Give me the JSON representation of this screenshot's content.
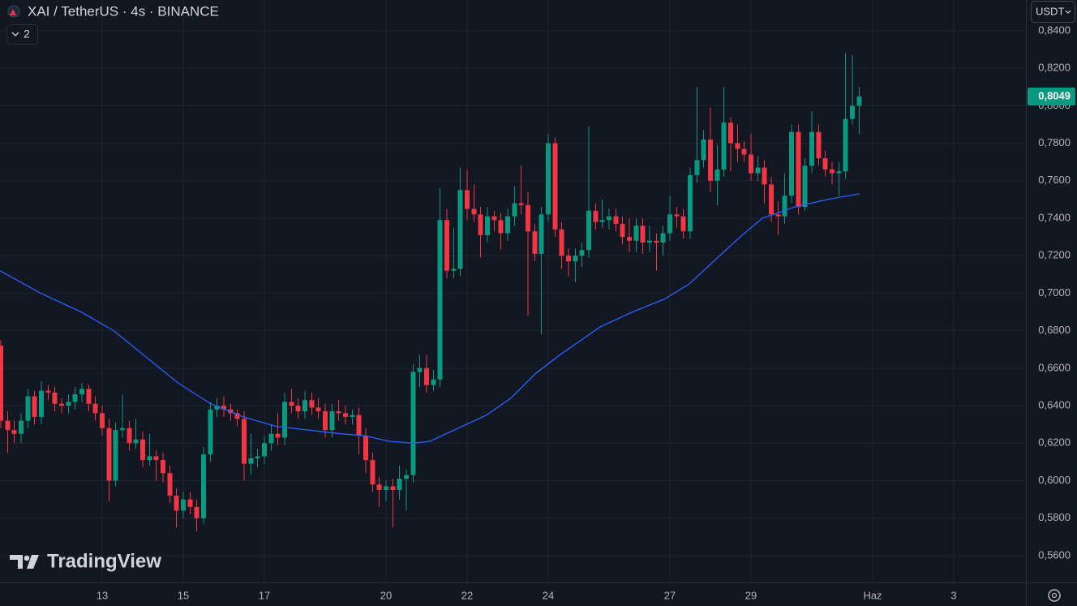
{
  "chart_data": {
    "type": "candlestick",
    "title": "XAI / TetherUS · 4s · BINANCE",
    "indicator_badge": "2",
    "currency": "USDT",
    "watermark": "TradingView",
    "last_price_label": "0,8049",
    "up_color": "#089981",
    "down_color": "#f23645",
    "grid": true,
    "xlim": [
      10.48,
      35.78
    ],
    "ylim": [
      0.5457,
      0.8564
    ],
    "xticks": [
      13,
      15,
      17,
      20,
      22,
      24,
      27,
      29,
      {
        "value": 32,
        "label": "Haz"
      },
      {
        "value": 34,
        "label": "3"
      }
    ],
    "yticks": [
      {
        "value": 0.56,
        "label": "0,5600"
      },
      {
        "value": 0.58,
        "label": "0,5800"
      },
      {
        "value": 0.6,
        "label": "0,6000"
      },
      {
        "value": 0.62,
        "label": "0,6200"
      },
      {
        "value": 0.64,
        "label": "0,6400"
      },
      {
        "value": 0.66,
        "label": "0,6600"
      },
      {
        "value": 0.68,
        "label": "0,6800"
      },
      {
        "value": 0.7,
        "label": "0,7000"
      },
      {
        "value": 0.72,
        "label": "0,7200"
      },
      {
        "value": 0.74,
        "label": "0,7400"
      },
      {
        "value": 0.76,
        "label": "0,7600"
      },
      {
        "value": 0.78,
        "label": "0,7800"
      },
      {
        "value": 0.8,
        "label": "0,8000"
      },
      {
        "value": 0.82,
        "label": "0,8200"
      },
      {
        "value": 0.84,
        "label": "0,8400"
      }
    ],
    "x": [
      10.5,
      10.67,
      10.83,
      11,
      11.17,
      11.33,
      11.5,
      11.67,
      11.83,
      12,
      12.17,
      12.33,
      12.5,
      12.67,
      12.83,
      13,
      13.17,
      13.33,
      13.5,
      13.67,
      13.83,
      14,
      14.17,
      14.33,
      14.5,
      14.67,
      14.83,
      15,
      15.17,
      15.33,
      15.5,
      15.67,
      15.83,
      16,
      16.17,
      16.33,
      16.5,
      16.67,
      16.83,
      17,
      17.17,
      17.33,
      17.5,
      17.67,
      17.83,
      18,
      18.17,
      18.33,
      18.5,
      18.67,
      18.83,
      19,
      19.17,
      19.33,
      19.5,
      19.67,
      19.83,
      20,
      20.17,
      20.33,
      20.5,
      20.67,
      20.83,
      21,
      21.17,
      21.33,
      21.5,
      21.67,
      21.83,
      22,
      22.17,
      22.33,
      22.5,
      22.67,
      22.83,
      23,
      23.17,
      23.33,
      23.5,
      23.67,
      23.83,
      24,
      24.17,
      24.33,
      24.5,
      24.67,
      24.83,
      25,
      25.17,
      25.33,
      25.5,
      25.67,
      25.83,
      26,
      26.17,
      26.33,
      26.5,
      26.67,
      26.83,
      27,
      27.17,
      27.33,
      27.5,
      27.67,
      27.83,
      28,
      28.17,
      28.33,
      28.5,
      28.67,
      28.83,
      29,
      29.17,
      29.33,
      29.5,
      29.67,
      29.83,
      30,
      30.17,
      30.33,
      30.5,
      30.67,
      30.83,
      31,
      31.17,
      31.33,
      31.5,
      31.67
    ],
    "candles": {
      "open": [
        0.672,
        0.632,
        0.627,
        0.625,
        0.632,
        0.645,
        0.634,
        0.648,
        0.647,
        0.641,
        0.64,
        0.642,
        0.646,
        0.649,
        0.641,
        0.636,
        0.628,
        0.6,
        0.627,
        0.628,
        0.62,
        0.622,
        0.611,
        0.613,
        0.611,
        0.604,
        0.592,
        0.584,
        0.59,
        0.586,
        0.58,
        0.614,
        0.638,
        0.64,
        0.638,
        0.636,
        0.633,
        0.609,
        0.612,
        0.613,
        0.62,
        0.625,
        0.623,
        0.642,
        0.64,
        0.637,
        0.643,
        0.639,
        0.637,
        0.627,
        0.637,
        0.636,
        0.634,
        0.635,
        0.624,
        0.611,
        0.598,
        0.595,
        0.597,
        0.595,
        0.601,
        0.603,
        0.658,
        0.66,
        0.651,
        0.654,
        0.739,
        0.712,
        0.713,
        0.755,
        0.745,
        0.742,
        0.731,
        0.741,
        0.739,
        0.732,
        0.741,
        0.748,
        0.747,
        0.733,
        0.721,
        0.742,
        0.78,
        0.734,
        0.72,
        0.717,
        0.72,
        0.723,
        0.744,
        0.738,
        0.739,
        0.741,
        0.737,
        0.73,
        0.728,
        0.736,
        0.727,
        0.728,
        0.727,
        0.732,
        0.742,
        0.741,
        0.733,
        0.763,
        0.771,
        0.782,
        0.76,
        0.766,
        0.791,
        0.78,
        0.777,
        0.774,
        0.764,
        0.767,
        0.758,
        0.742,
        0.741,
        0.752,
        0.786,
        0.746,
        0.768,
        0.786,
        0.772,
        0.766,
        0.764,
        0.765,
        0.793,
        0.8
      ],
      "high": [
        0.675,
        0.637,
        0.632,
        0.636,
        0.649,
        0.648,
        0.653,
        0.651,
        0.65,
        0.644,
        0.646,
        0.65,
        0.652,
        0.651,
        0.645,
        0.64,
        0.633,
        0.631,
        0.646,
        0.632,
        0.633,
        0.626,
        0.625,
        0.616,
        0.615,
        0.608,
        0.596,
        0.594,
        0.594,
        0.59,
        0.618,
        0.642,
        0.644,
        0.645,
        0.641,
        0.638,
        0.637,
        0.625,
        0.617,
        0.624,
        0.63,
        0.636,
        0.647,
        0.649,
        0.644,
        0.648,
        0.647,
        0.644,
        0.641,
        0.641,
        0.643,
        0.64,
        0.638,
        0.639,
        0.628,
        0.615,
        0.602,
        0.6,
        0.601,
        0.608,
        0.606,
        0.662,
        0.667,
        0.667,
        0.659,
        0.756,
        0.745,
        0.735,
        0.767,
        0.766,
        0.758,
        0.746,
        0.746,
        0.744,
        0.743,
        0.745,
        0.757,
        0.768,
        0.754,
        0.737,
        0.746,
        0.785,
        0.783,
        0.738,
        0.724,
        0.724,
        0.727,
        0.789,
        0.748,
        0.75,
        0.745,
        0.745,
        0.741,
        0.74,
        0.74,
        0.74,
        0.736,
        0.732,
        0.736,
        0.752,
        0.746,
        0.745,
        0.767,
        0.81,
        0.787,
        0.799,
        0.779,
        0.81,
        0.794,
        0.79,
        0.781,
        0.785,
        0.773,
        0.771,
        0.762,
        0.749,
        0.764,
        0.79,
        0.79,
        0.772,
        0.797,
        0.79,
        0.776,
        0.77,
        0.77,
        0.828,
        0.827,
        0.81
      ],
      "low": [
        0.628,
        0.615,
        0.62,
        0.62,
        0.628,
        0.63,
        0.63,
        0.643,
        0.637,
        0.636,
        0.636,
        0.638,
        0.642,
        0.637,
        0.632,
        0.624,
        0.589,
        0.597,
        0.623,
        0.616,
        0.617,
        0.607,
        0.608,
        0.6,
        0.599,
        0.588,
        0.575,
        0.58,
        0.582,
        0.573,
        0.577,
        0.61,
        0.634,
        0.634,
        0.632,
        0.629,
        0.6,
        0.603,
        0.607,
        0.609,
        0.616,
        0.619,
        0.619,
        0.636,
        0.633,
        0.633,
        0.635,
        0.633,
        0.623,
        0.623,
        0.632,
        0.63,
        0.63,
        0.614,
        0.604,
        0.594,
        0.586,
        0.589,
        0.575,
        0.59,
        0.584,
        0.599,
        0.65,
        0.647,
        0.648,
        0.65,
        0.708,
        0.708,
        0.709,
        0.739,
        0.738,
        0.719,
        0.727,
        0.733,
        0.723,
        0.728,
        0.736,
        0.742,
        0.688,
        0.717,
        0.678,
        0.738,
        0.73,
        0.713,
        0.709,
        0.706,
        0.714,
        0.719,
        0.734,
        0.735,
        0.734,
        0.733,
        0.726,
        0.722,
        0.722,
        0.721,
        0.722,
        0.712,
        0.72,
        0.728,
        0.735,
        0.729,
        0.729,
        0.759,
        0.767,
        0.754,
        0.747,
        0.762,
        0.765,
        0.77,
        0.77,
        0.76,
        0.76,
        0.748,
        0.738,
        0.731,
        0.737,
        0.748,
        0.742,
        0.744,
        0.764,
        0.768,
        0.762,
        0.758,
        0.752,
        0.761,
        0.79,
        0.785
      ],
      "close": [
        0.632,
        0.627,
        0.625,
        0.632,
        0.645,
        0.634,
        0.648,
        0.647,
        0.641,
        0.64,
        0.642,
        0.646,
        0.649,
        0.641,
        0.636,
        0.628,
        0.6,
        0.627,
        0.628,
        0.62,
        0.622,
        0.611,
        0.613,
        0.611,
        0.604,
        0.592,
        0.584,
        0.59,
        0.586,
        0.58,
        0.614,
        0.638,
        0.64,
        0.638,
        0.636,
        0.633,
        0.609,
        0.612,
        0.613,
        0.62,
        0.625,
        0.623,
        0.642,
        0.64,
        0.637,
        0.643,
        0.639,
        0.637,
        0.627,
        0.637,
        0.636,
        0.634,
        0.635,
        0.624,
        0.611,
        0.598,
        0.595,
        0.597,
        0.595,
        0.601,
        0.603,
        0.658,
        0.66,
        0.651,
        0.654,
        0.739,
        0.712,
        0.713,
        0.755,
        0.745,
        0.742,
        0.731,
        0.741,
        0.739,
        0.732,
        0.741,
        0.748,
        0.747,
        0.733,
        0.721,
        0.742,
        0.78,
        0.734,
        0.72,
        0.717,
        0.72,
        0.723,
        0.744,
        0.738,
        0.739,
        0.741,
        0.737,
        0.73,
        0.728,
        0.736,
        0.727,
        0.728,
        0.727,
        0.732,
        0.742,
        0.741,
        0.733,
        0.763,
        0.771,
        0.782,
        0.76,
        0.766,
        0.791,
        0.78,
        0.777,
        0.774,
        0.764,
        0.767,
        0.758,
        0.742,
        0.741,
        0.752,
        0.786,
        0.746,
        0.768,
        0.786,
        0.772,
        0.766,
        0.764,
        0.765,
        0.793,
        0.8,
        0.8049
      ]
    },
    "overlays": [
      {
        "type": "line",
        "color": "#2962ff",
        "x": [
          10.48,
          11.48,
          12.48,
          13.28,
          14.08,
          14.88,
          15.68,
          16.48,
          17.28,
          18.08,
          18.88,
          19.48,
          20.08,
          20.68,
          21.08,
          21.68,
          22.48,
          23.08,
          23.68,
          24.28,
          24.68,
          25.28,
          26.08,
          26.88,
          27.48,
          28.08,
          28.68,
          29.28,
          30.08,
          30.88,
          31.68
        ],
        "values": [
          0.712,
          0.7,
          0.69,
          0.68,
          0.666,
          0.652,
          0.641,
          0.634,
          0.629,
          0.627,
          0.625,
          0.624,
          0.621,
          0.62,
          0.621,
          0.627,
          0.635,
          0.644,
          0.657,
          0.667,
          0.673,
          0.682,
          0.69,
          0.697,
          0.705,
          0.717,
          0.729,
          0.74,
          0.746,
          0.75,
          0.753
        ]
      }
    ]
  }
}
